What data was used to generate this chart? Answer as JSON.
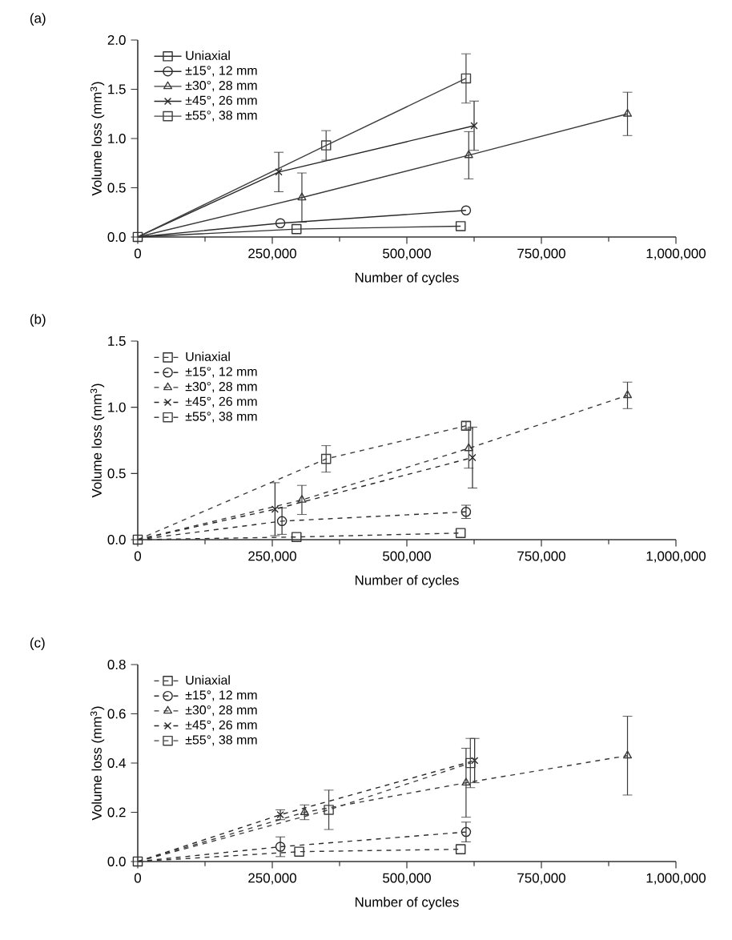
{
  "chart_data": [
    {
      "type": "line",
      "title": "(a)",
      "xlabel": "Number of cycles",
      "ylabel": "Volume loss (mm$^{3}$)",
      "line_style": "solid",
      "legend": "top left",
      "xlim": [
        0,
        1000000
      ],
      "ylim": [
        0,
        2.0
      ],
      "xticks": [
        0,
        {
          "value": 250000,
          "label": "250,000"
        },
        {
          "value": 500000,
          "label": "500,000"
        },
        {
          "value": 750000,
          "label": "750,000"
        },
        {
          "value": 1000000,
          "label": "1,000,000"
        }
      ],
      "yticks": [
        {
          "value": 0,
          "label": "0.0"
        },
        {
          "value": 0.5,
          "label": "0.5"
        },
        {
          "value": 1.0,
          "label": "1.0"
        },
        {
          "value": 1.5,
          "label": "1.5"
        },
        {
          "value": 2.0,
          "label": "2.0"
        }
      ],
      "series": [
        {
          "name": "Uniaxial",
          "color": "#333333",
          "marker": "square",
          "x": [
            0,
            295000,
            600000
          ],
          "values": [
            0,
            0.08,
            0.11
          ]
        },
        {
          "name": "±15°, 12 mm",
          "color": "#2b2b2b",
          "marker": "circle",
          "x": [
            0,
            265000,
            610000
          ],
          "values": [
            0,
            0.14,
            0.27
          ]
        },
        {
          "name": "±30°, 28 mm",
          "color": "#3a3a3a",
          "marker": "triangle",
          "x": [
            0,
            305000,
            615000,
            910000
          ],
          "values": [
            0,
            0.4,
            0.83,
            1.25
          ],
          "errors": [
            null,
            0.25,
            0.24,
            0.22
          ]
        },
        {
          "name": "±45°, 26 mm",
          "color": "#262626",
          "marker": "cross",
          "x": [
            0,
            262000,
            625000
          ],
          "values": [
            0,
            0.66,
            1.13
          ],
          "errors": [
            null,
            0.2,
            0.25
          ]
        },
        {
          "name": "±55°, 38 mm",
          "color": "#404040",
          "marker": "square",
          "x": [
            0,
            350000,
            610000
          ],
          "values": [
            0,
            0.93,
            1.61
          ],
          "errors": [
            null,
            0.15,
            0.25
          ]
        }
      ]
    },
    {
      "type": "line",
      "title": "(b)",
      "xlabel": "Number of cycles",
      "ylabel": "Volume loss (mm$^{3}$)",
      "line_style": "dashed",
      "legend": "top left",
      "xlim": [
        0,
        1000000
      ],
      "ylim": [
        0,
        1.5
      ],
      "xticks": [
        0,
        {
          "value": 250000,
          "label": "250,000"
        },
        {
          "value": 500000,
          "label": "500,000"
        },
        {
          "value": 750000,
          "label": "750,000"
        },
        {
          "value": 1000000,
          "label": "1,000,000"
        }
      ],
      "yticks": [
        {
          "value": 0,
          "label": "0.0"
        },
        {
          "value": 0.5,
          "label": "0.5"
        },
        {
          "value": 1.0,
          "label": "1.0"
        },
        {
          "value": 1.5,
          "label": "1.5"
        }
      ],
      "series": [
        {
          "name": "Uniaxial",
          "color": "#333333",
          "marker": "square",
          "x": [
            0,
            295000,
            600000
          ],
          "values": [
            0,
            0.02,
            0.05
          ]
        },
        {
          "name": "±15°, 12 mm",
          "color": "#2b2b2b",
          "marker": "circle",
          "x": [
            0,
            268000,
            610000
          ],
          "values": [
            0,
            0.14,
            0.21
          ],
          "errors": [
            null,
            0.1,
            0.05
          ]
        },
        {
          "name": "±30°, 28 mm",
          "color": "#3a3a3a",
          "marker": "triangle",
          "x": [
            0,
            305000,
            615000,
            910000
          ],
          "values": [
            0,
            0.3,
            0.69,
            1.09
          ],
          "errors": [
            null,
            0.11,
            0.15,
            0.1
          ]
        },
        {
          "name": "±45°, 26 mm",
          "color": "#262626",
          "marker": "cross",
          "x": [
            0,
            255000,
            622000
          ],
          "values": [
            0,
            0.23,
            0.62
          ],
          "errors": [
            null,
            0.2,
            0.23
          ]
        },
        {
          "name": "±55°, 38 mm",
          "color": "#404040",
          "marker": "square",
          "x": [
            0,
            350000,
            610000
          ],
          "values": [
            0,
            0.61,
            0.86
          ],
          "errors": [
            null,
            0.1,
            0.03
          ]
        }
      ]
    },
    {
      "type": "line",
      "title": "(c)",
      "xlabel": "Number of cycles",
      "ylabel": "Volume loss (mm$^{3}$)",
      "line_style": "dashed",
      "legend": "top left",
      "xlim": [
        0,
        1000000
      ],
      "ylim": [
        0,
        0.8
      ],
      "xticks": [
        0,
        {
          "value": 250000,
          "label": "250,000"
        },
        {
          "value": 500000,
          "label": "500,000"
        },
        {
          "value": 750000,
          "label": "750,000"
        },
        {
          "value": 1000000,
          "label": "1,000,000"
        }
      ],
      "yticks": [
        {
          "value": 0,
          "label": "0.0"
        },
        {
          "value": 0.2,
          "label": "0.2"
        },
        {
          "value": 0.4,
          "label": "0.4"
        },
        {
          "value": 0.6,
          "label": "0.6"
        },
        {
          "value": 0.8,
          "label": "0.8"
        }
      ],
      "series": [
        {
          "name": "Uniaxial",
          "color": "#333333",
          "marker": "square",
          "x": [
            0,
            300000,
            600000
          ],
          "values": [
            0,
            0.04,
            0.05
          ]
        },
        {
          "name": "±15°, 12 mm",
          "color": "#2b2b2b",
          "marker": "circle",
          "x": [
            0,
            265000,
            610000
          ],
          "values": [
            0,
            0.06,
            0.12
          ],
          "errors": [
            null,
            0.04,
            0.04
          ]
        },
        {
          "name": "±30°, 28 mm",
          "color": "#3a3a3a",
          "marker": "triangle",
          "x": [
            0,
            310000,
            610000,
            910000
          ],
          "values": [
            0,
            0.2,
            0.32,
            0.43
          ],
          "errors": [
            null,
            0.03,
            0.14,
            0.16
          ]
        },
        {
          "name": "±45°, 26 mm",
          "color": "#262626",
          "marker": "cross",
          "x": [
            0,
            265000,
            626000
          ],
          "values": [
            0,
            0.19,
            0.41
          ],
          "errors": [
            null,
            0.02,
            0.09
          ]
        },
        {
          "name": "±55°, 38 mm",
          "color": "#404040",
          "marker": "square",
          "x": [
            0,
            355000,
            618000
          ],
          "values": [
            0,
            0.21,
            0.4
          ],
          "errors": [
            null,
            0.08,
            0.1
          ]
        }
      ]
    }
  ]
}
